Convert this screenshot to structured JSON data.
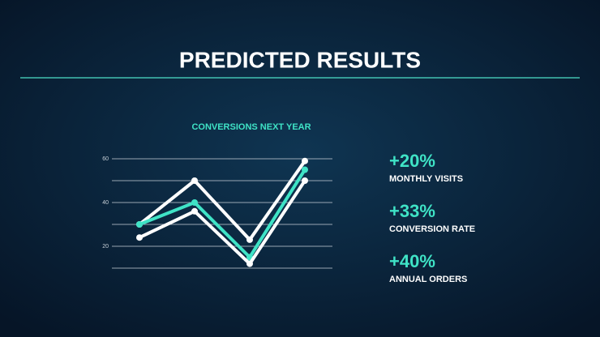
{
  "header": {
    "title": "PREDICTED RESULTS"
  },
  "chart_data": {
    "type": "line",
    "title": "CONVERSIONS NEXT YEAR",
    "categories": [
      null,
      null,
      null,
      null
    ],
    "series": [
      {
        "color": "#ffffff",
        "values": [
          30,
          50,
          23,
          59
        ]
      },
      {
        "color": "#3fe3c6",
        "values": [
          30,
          40,
          15,
          55
        ]
      },
      {
        "color": "#ffffff",
        "values": [
          24,
          36,
          12,
          50
        ]
      }
    ],
    "ylim": [
      10,
      60
    ],
    "yticks": [
      20,
      40,
      60
    ],
    "minor_yticks": [
      10,
      30,
      50
    ],
    "grid": true
  },
  "stats": [
    {
      "value": "+20%",
      "label": "MONTHLY VISITS"
    },
    {
      "value": "+33%",
      "label": "CONVERSION RATE"
    },
    {
      "value": "+40%",
      "label": "ANNUAL ORDERS"
    }
  ]
}
